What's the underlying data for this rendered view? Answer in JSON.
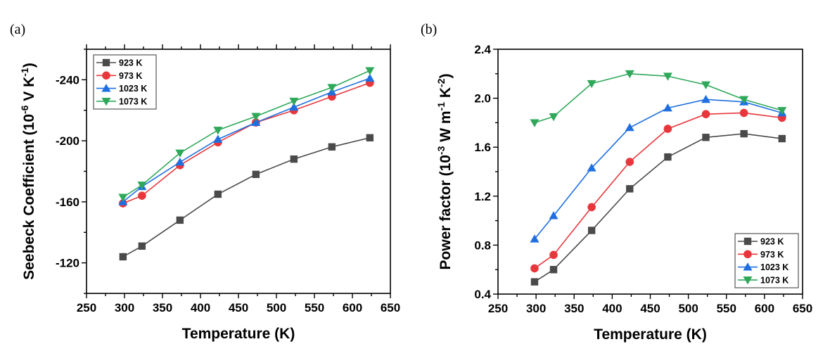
{
  "chart_data": [
    {
      "id": "a",
      "type": "line",
      "panel_label": "(a)",
      "title": "",
      "xlabel": "Temperature (K)",
      "ylabel": "Seebeck Coefficient (10^-6 V K^-1)",
      "ylabel_parts": {
        "main": "Seebeck Coefficient (10",
        "sup1": "-6",
        "mid": " V K",
        "sup2": "-1",
        "end": ")"
      },
      "xlim": [
        250,
        650
      ],
      "ylim": [
        -100,
        -260
      ],
      "y_inverted": true,
      "xticks": [
        250,
        300,
        350,
        400,
        450,
        500,
        550,
        600,
        650
      ],
      "yticks": [
        -120,
        -160,
        -200,
        -240
      ],
      "ytick_labels": [
        "-120",
        "-160",
        "-200",
        "-240"
      ],
      "xtick_labels": [
        "250",
        "300",
        "350",
        "400",
        "450",
        "500",
        "550",
        "600",
        "650"
      ],
      "legend_position": "top-left",
      "grid": false,
      "x": [
        298,
        323,
        373,
        423,
        473,
        523,
        573,
        623
      ],
      "series": [
        {
          "name": "923 K",
          "color": "#4a4a4a",
          "marker": "square",
          "values": [
            -124,
            -131,
            -148,
            -165,
            -178,
            -188,
            -196,
            -202
          ]
        },
        {
          "name": "973 K",
          "color": "#e8373c",
          "marker": "circle",
          "values": [
            -159,
            -164,
            -184,
            -199,
            -212,
            -220,
            -229,
            -238
          ]
        },
        {
          "name": "1023 K",
          "color": "#1f6fe0",
          "marker": "triangle-up",
          "values": [
            -160,
            -170,
            -186,
            -201,
            -212,
            -222,
            -232,
            -241
          ]
        },
        {
          "name": "1073 K",
          "color": "#2fa85a",
          "marker": "triangle-down",
          "values": [
            -163,
            -171,
            -192,
            -207,
            -216,
            -226,
            -235,
            -246
          ]
        }
      ]
    },
    {
      "id": "b",
      "type": "line",
      "panel_label": "(b)",
      "title": "",
      "xlabel": "Temperature (K)",
      "ylabel": "Power factor (10^-3 W m^-1 K^-2)",
      "ylabel_parts": {
        "main": "Power factor (10",
        "sup1": "-3",
        "mid": " W m",
        "sup2": "-1",
        "mid2": " K",
        "sup3": "-2",
        "end": ")"
      },
      "xlim": [
        250,
        650
      ],
      "ylim": [
        0.4,
        2.4
      ],
      "y_inverted": false,
      "xticks": [
        250,
        300,
        350,
        400,
        450,
        500,
        550,
        600,
        650
      ],
      "yticks": [
        0.4,
        0.8,
        1.2,
        1.6,
        2.0,
        2.4
      ],
      "ytick_labels": [
        "0.4",
        "0.8",
        "1.2",
        "1.6",
        "2.0",
        "2.4"
      ],
      "xtick_labels": [
        "250",
        "300",
        "350",
        "400",
        "450",
        "500",
        "550",
        "600",
        "650"
      ],
      "legend_position": "bottom-right",
      "grid": false,
      "x": [
        298,
        323,
        373,
        423,
        473,
        523,
        573,
        623
      ],
      "series": [
        {
          "name": "923 K",
          "color": "#4a4a4a",
          "marker": "square",
          "values": [
            0.5,
            0.6,
            0.92,
            1.26,
            1.52,
            1.68,
            1.71,
            1.67
          ]
        },
        {
          "name": "973 K",
          "color": "#e8373c",
          "marker": "circle",
          "values": [
            0.61,
            0.72,
            1.11,
            1.48,
            1.75,
            1.87,
            1.88,
            1.84
          ]
        },
        {
          "name": "1023 K",
          "color": "#1f6fe0",
          "marker": "triangle-up",
          "values": [
            0.85,
            1.04,
            1.43,
            1.76,
            1.92,
            1.99,
            1.97,
            1.88
          ]
        },
        {
          "name": "1073 K",
          "color": "#2fa85a",
          "marker": "triangle-down",
          "values": [
            1.8,
            1.85,
            2.12,
            2.2,
            2.18,
            2.11,
            1.99,
            1.9
          ]
        }
      ]
    }
  ]
}
